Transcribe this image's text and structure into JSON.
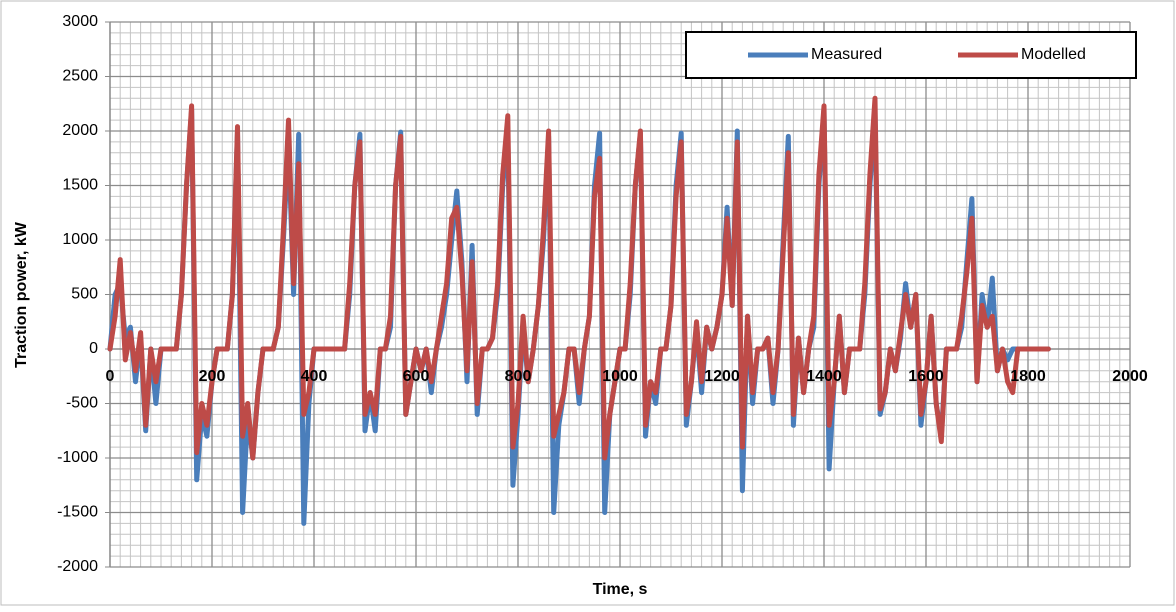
{
  "chart_data": {
    "type": "line",
    "xlabel": "Time, s",
    "ylabel": "Traction power, kW",
    "x": [
      0,
      10,
      20,
      30,
      40,
      50,
      60,
      70,
      80,
      90,
      100,
      110,
      120,
      130,
      140,
      150,
      160,
      170,
      180,
      190,
      200,
      210,
      220,
      230,
      240,
      250,
      260,
      270,
      280,
      290,
      300,
      310,
      320,
      330,
      340,
      350,
      360,
      370,
      380,
      390,
      400,
      410,
      420,
      430,
      440,
      450,
      460,
      470,
      480,
      490,
      500,
      510,
      520,
      530,
      540,
      550,
      560,
      570,
      580,
      590,
      600,
      610,
      620,
      630,
      640,
      650,
      660,
      670,
      680,
      690,
      700,
      710,
      720,
      730,
      740,
      750,
      760,
      770,
      780,
      790,
      800,
      810,
      820,
      830,
      840,
      850,
      860,
      870,
      880,
      890,
      900,
      910,
      920,
      930,
      940,
      950,
      960,
      970,
      980,
      990,
      1000,
      1010,
      1020,
      1030,
      1040,
      1050,
      1060,
      1070,
      1080,
      1090,
      1100,
      1110,
      1120,
      1130,
      1140,
      1150,
      1160,
      1170,
      1180,
      1190,
      1200,
      1210,
      1220,
      1230,
      1240,
      1250,
      1260,
      1270,
      1280,
      1290,
      1300,
      1310,
      1320,
      1330,
      1340,
      1350,
      1360,
      1370,
      1380,
      1390,
      1400,
      1410,
      1420,
      1430,
      1440,
      1450,
      1460,
      1470,
      1480,
      1490,
      1500,
      1510,
      1520,
      1530,
      1540,
      1550,
      1560,
      1570,
      1580,
      1590,
      1600,
      1610,
      1620,
      1630,
      1640,
      1650,
      1660,
      1670,
      1680,
      1690,
      1700,
      1710,
      1720,
      1730,
      1740,
      1750,
      1760,
      1770,
      1780,
      1790,
      1800,
      1810,
      1820,
      1830,
      1840
    ],
    "series": [
      {
        "name": "Measured",
        "color": "#4a7ebb",
        "values": [
          0,
          500,
          600,
          100,
          200,
          -300,
          100,
          -750,
          0,
          -500,
          0,
          0,
          0,
          0,
          500,
          1500,
          2200,
          -1200,
          -600,
          -800,
          -300,
          0,
          0,
          0,
          500,
          2000,
          -1500,
          -600,
          -1000,
          -400,
          0,
          0,
          0,
          200,
          1000,
          1900,
          500,
          1970,
          -1600,
          -500,
          0,
          0,
          0,
          0,
          0,
          0,
          0,
          500,
          1500,
          1970,
          -750,
          -400,
          -750,
          0,
          0,
          200,
          1500,
          1990,
          -600,
          -300,
          0,
          -200,
          0,
          -400,
          0,
          200,
          500,
          1000,
          1450,
          800,
          -300,
          950,
          -600,
          0,
          0,
          100,
          500,
          1500,
          2000,
          -1250,
          -600,
          200,
          -300,
          0,
          400,
          1000,
          1950,
          -1500,
          -700,
          -400,
          0,
          0,
          -500,
          0,
          300,
          1500,
          1980,
          -1500,
          -600,
          -300,
          0,
          0,
          500,
          1500,
          1980,
          -800,
          -300,
          -500,
          0,
          0,
          400,
          1500,
          1980,
          -700,
          -300,
          200,
          -400,
          200,
          0,
          200,
          500,
          1300,
          400,
          2000,
          -1300,
          300,
          -500,
          0,
          0,
          100,
          -500,
          0,
          1000,
          1950,
          -700,
          100,
          -400,
          0,
          200,
          1500,
          2200,
          -1100,
          -300,
          300,
          -400,
          0,
          0,
          0,
          500,
          1500,
          2150,
          -600,
          -400,
          0,
          -200,
          100,
          600,
          200,
          500,
          -700,
          -300,
          300,
          -500,
          -800,
          0,
          0,
          0,
          200,
          800,
          1380,
          -300,
          500,
          200,
          650,
          -200,
          0,
          -100,
          0,
          0,
          0,
          0,
          0,
          0,
          0,
          0
        ]
      },
      {
        "name": "Modelled",
        "color": "#be4b48",
        "values": [
          0,
          300,
          820,
          -100,
          150,
          -200,
          150,
          -700,
          0,
          -300,
          0,
          0,
          0,
          0,
          500,
          1500,
          2230,
          -950,
          -500,
          -700,
          -300,
          0,
          0,
          0,
          500,
          2040,
          -800,
          -500,
          -1000,
          -400,
          0,
          0,
          0,
          200,
          1100,
          2100,
          600,
          1700,
          -600,
          -400,
          0,
          0,
          0,
          0,
          0,
          0,
          0,
          600,
          1500,
          1900,
          -600,
          -400,
          -600,
          0,
          0,
          300,
          1500,
          1950,
          -600,
          -300,
          0,
          -200,
          0,
          -300,
          0,
          300,
          600,
          1200,
          1300,
          700,
          -200,
          800,
          -500,
          0,
          0,
          100,
          600,
          1600,
          2140,
          -900,
          -500,
          300,
          -300,
          0,
          400,
          1100,
          2000,
          -800,
          -600,
          -400,
          0,
          0,
          -400,
          0,
          300,
          1400,
          1750,
          -1000,
          -600,
          -300,
          0,
          0,
          600,
          1500,
          2000,
          -700,
          -300,
          -400,
          0,
          0,
          400,
          1400,
          1900,
          -600,
          -300,
          250,
          -300,
          200,
          0,
          200,
          500,
          1200,
          400,
          1900,
          -900,
          300,
          -400,
          0,
          0,
          100,
          -400,
          0,
          900,
          1800,
          -600,
          100,
          -400,
          0,
          300,
          1600,
          2230,
          -700,
          -300,
          300,
          -400,
          0,
          0,
          0,
          600,
          1600,
          2300,
          -550,
          -400,
          0,
          -200,
          150,
          500,
          200,
          500,
          -600,
          -300,
          300,
          -500,
          -850,
          0,
          0,
          0,
          300,
          700,
          1200,
          -300,
          400,
          200,
          300,
          -200,
          0,
          -300,
          -400,
          0,
          0,
          0,
          0,
          0,
          0,
          0
        ]
      }
    ],
    "xlim": [
      0,
      2000
    ],
    "xticks": [
      0,
      200,
      400,
      600,
      800,
      1000,
      1200,
      1400,
      1600,
      1800,
      2000
    ],
    "ylim": [
      -2000,
      3000
    ],
    "yticks": [
      -2000,
      -1500,
      -1000,
      -500,
      0,
      500,
      1000,
      1500,
      2000,
      2500,
      3000
    ],
    "grid": true,
    "minor_grid": true,
    "legend": "upper right"
  }
}
